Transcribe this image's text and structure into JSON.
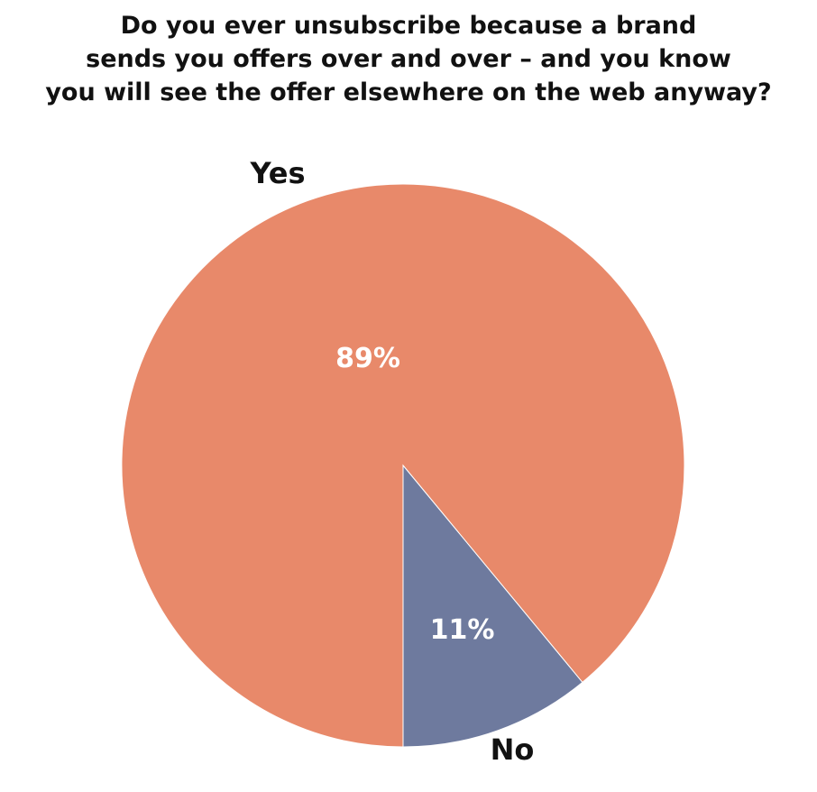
{
  "chart_data": {
    "type": "pie",
    "title_lines": [
      "Do you ever unsubscribe because a brand",
      "sends you offers over and over – and you know",
      "you will see the offer elsewhere on the web anyway?"
    ],
    "slices": [
      {
        "label": "Yes",
        "value": 89,
        "value_label": "89%",
        "color": "#E8896A"
      },
      {
        "label": "No",
        "value": 11,
        "value_label": "11%",
        "color": "#6E7A9E"
      }
    ],
    "start": "6 o'clock",
    "direction": "clockwise",
    "legend": "none (slice labels outside pie)"
  }
}
